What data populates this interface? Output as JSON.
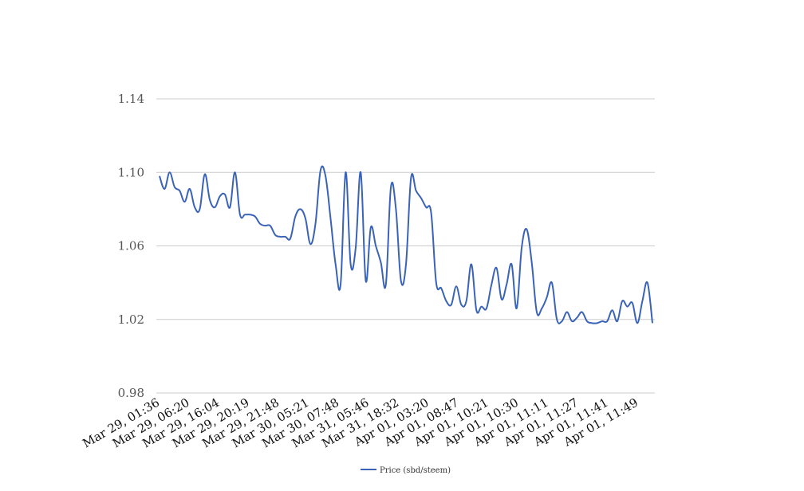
{
  "chart_data": {
    "type": "line",
    "title": "",
    "xlabel": "",
    "ylabel": "",
    "ylim": [
      0.98,
      1.14
    ],
    "y_ticks": [
      "0.98",
      "1.02",
      "1.06",
      "1.10",
      "1.14"
    ],
    "y_tick_values": [
      0.98,
      1.02,
      1.06,
      1.1,
      1.14
    ],
    "x_tick_labels": [
      "Mar 29, 01:36",
      "Mar 29, 06:20",
      "Mar 29, 16:04",
      "Mar 29, 20:19",
      "Mar 29, 21:48",
      "Mar 30, 05:21",
      "Mar 30, 07:48",
      "Mar 31, 05:46",
      "Mar 31, 18:32",
      "Apr 01, 03:20",
      "Apr 01, 08:47",
      "Apr 01, 10:21",
      "Apr 01, 10:30",
      "Apr 01, 11:11",
      "Apr 01, 11:27",
      "Apr 01, 11:41",
      "Apr 01, 11:49"
    ],
    "grid": "horizontal",
    "legend_position": "bottom",
    "series": [
      {
        "name": "Price (sbd/steem)",
        "color": "#3a63b8",
        "values": [
          1.098,
          1.091,
          1.1,
          1.092,
          1.09,
          1.084,
          1.091,
          1.081,
          1.08,
          1.099,
          1.085,
          1.081,
          1.087,
          1.088,
          1.081,
          1.1,
          1.077,
          1.077,
          1.077,
          1.076,
          1.072,
          1.071,
          1.071,
          1.066,
          1.065,
          1.065,
          1.064,
          1.076,
          1.08,
          1.075,
          1.061,
          1.072,
          1.101,
          1.098,
          1.075,
          1.05,
          1.039,
          1.1,
          1.05,
          1.059,
          1.1,
          1.041,
          1.07,
          1.06,
          1.051,
          1.039,
          1.092,
          1.08,
          1.041,
          1.05,
          1.097,
          1.09,
          1.086,
          1.081,
          1.078,
          1.04,
          1.037,
          1.03,
          1.028,
          1.038,
          1.028,
          1.03,
          1.05,
          1.025,
          1.027,
          1.026,
          1.039,
          1.048,
          1.031,
          1.039,
          1.05,
          1.026,
          1.059,
          1.069,
          1.051,
          1.024,
          1.026,
          1.032,
          1.04,
          1.02,
          1.019,
          1.024,
          1.019,
          1.021,
          1.024,
          1.019,
          1.018,
          1.018,
          1.019,
          1.019,
          1.025,
          1.019,
          1.03,
          1.027,
          1.029,
          1.018,
          1.03,
          1.04,
          1.018
        ]
      }
    ]
  }
}
